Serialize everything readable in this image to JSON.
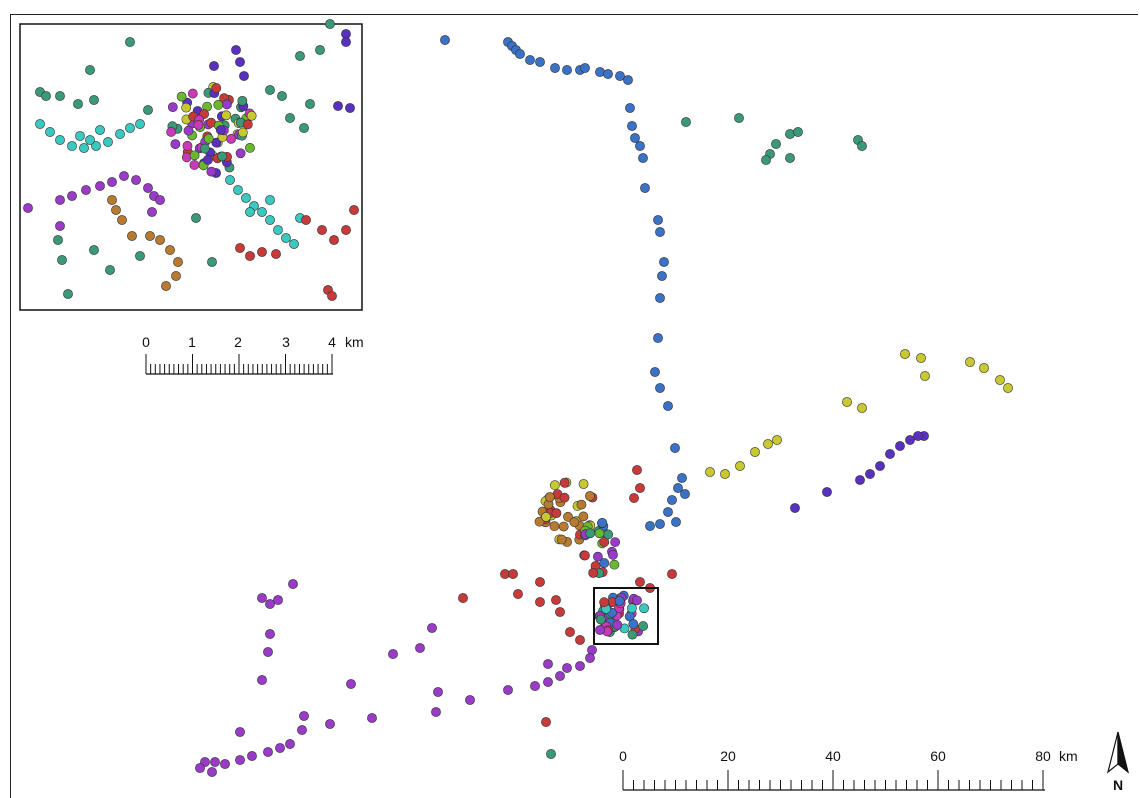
{
  "main_scale": {
    "labels": [
      "0",
      "20",
      "40",
      "60",
      "80"
    ],
    "unit": "km"
  },
  "inset_scale": {
    "labels": [
      "0",
      "1",
      "2",
      "3",
      "4"
    ],
    "unit": "km"
  },
  "north_arrow": {
    "label": "N",
    "icon": "north-arrow-icon"
  },
  "colors": {
    "blue": "#3a72c8",
    "teal": "#3a9a78",
    "yellow": "#c8c830",
    "indigo": "#5a30c0",
    "purple": "#9a3ac8",
    "red": "#c83a3a",
    "brown": "#b87a30",
    "cyan": "#3ac8c0",
    "green": "#6ab830",
    "magenta": "#c83ab8"
  }
}
